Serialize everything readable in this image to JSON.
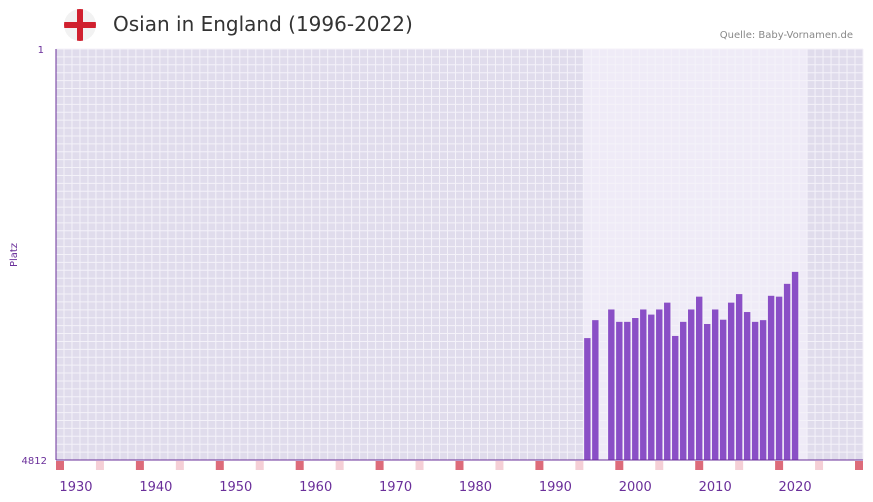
{
  "header": {
    "title": "Osian in England (1996-2022)",
    "source": "Quelle: Baby-Vornamen.de",
    "flag_icon": "england-flag-icon"
  },
  "colors": {
    "bar": "#8a4fc6",
    "axis": "#6a2f9a",
    "plot_bg": "#e0dcec",
    "highlight_bg": "#efebf7",
    "grid": "#f4f2f9",
    "decade_marker": "#dd6b7a",
    "half_decade_marker": "#f5cfd6"
  },
  "chart_data": {
    "type": "bar",
    "title": "Osian in England (1996-2022)",
    "xlabel": "",
    "ylabel": "Platz",
    "ylim": [
      4812,
      1
    ],
    "y_axis_inverted": true,
    "y_tick_labels": [
      "1",
      "4812"
    ],
    "x_range": [
      1928,
      2028
    ],
    "x_tick_labels": [
      "1930",
      "1940",
      "1950",
      "1960",
      "1970",
      "1980",
      "1990",
      "2000",
      "2010",
      "2020"
    ],
    "highlight_range": [
      1994,
      2021
    ],
    "grid": true,
    "x": [
      1994,
      1995,
      1997,
      1998,
      1999,
      2000,
      2001,
      2002,
      2003,
      2004,
      2005,
      2006,
      2007,
      2008,
      2009,
      2010,
      2011,
      2012,
      2013,
      2014,
      2015,
      2016,
      2017,
      2018,
      2019,
      2020
    ],
    "values": [
      3385,
      3175,
      3050,
      3195,
      3195,
      3150,
      3050,
      3110,
      3050,
      2970,
      3360,
      3195,
      3050,
      2900,
      3220,
      3050,
      3170,
      2970,
      2870,
      3080,
      3195,
      3175,
      2890,
      2900,
      2750,
      2610
    ]
  }
}
